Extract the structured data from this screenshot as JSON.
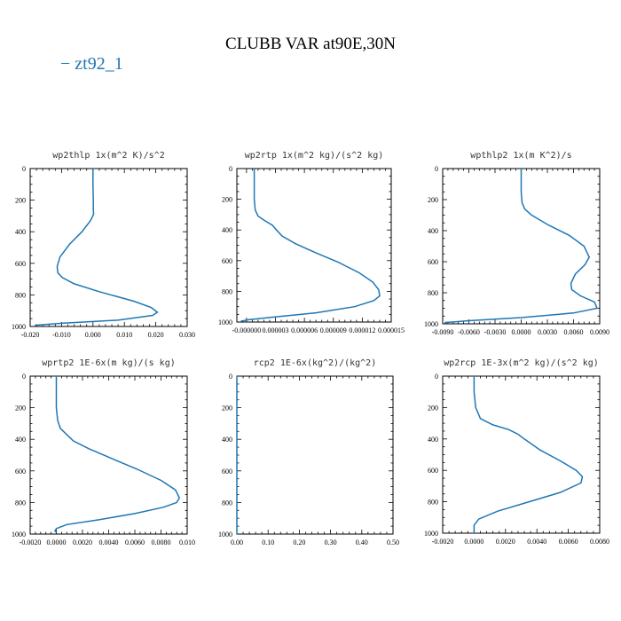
{
  "title": "CLUBB VAR at90E,30N",
  "legend": {
    "label": "− zt92_1",
    "color": "#1f77b4"
  },
  "chart_data": [
    {
      "type": "line",
      "title": "wp2thlp  1x(m^2 K)/s^2",
      "xlim": [
        -0.02,
        0.03
      ],
      "ylim": [
        1000,
        0
      ],
      "xticks": [
        "-0.020",
        "-0.010",
        "0.000",
        "0.010",
        "0.020",
        "0.030"
      ],
      "xtick_values": [
        -0.02,
        -0.01,
        0.0,
        0.01,
        0.02,
        0.03
      ],
      "yticks": [
        "0",
        "200",
        "400",
        "600",
        "800",
        "1000"
      ],
      "ytick_values": [
        0,
        200,
        400,
        600,
        800,
        1000
      ],
      "series": [
        {
          "x": [
            0.0,
            0.0,
            0.0001,
            0.0001,
            0.0002,
            -0.0008,
            -0.0035,
            -0.0075,
            -0.0105,
            -0.0114,
            -0.0112,
            -0.0098,
            -0.006,
            0.002,
            0.013,
            0.0185,
            0.0205,
            0.019,
            0.008,
            -0.01,
            -0.0185
          ],
          "y": [
            0,
            100,
            200,
            260,
            290,
            330,
            400,
            480,
            560,
            620,
            660,
            690,
            730,
            780,
            840,
            880,
            910,
            930,
            960,
            980,
            992
          ]
        }
      ]
    },
    {
      "type": "line",
      "title": "wp2rtp  1x(m^2 kg)/(s^2 kg)",
      "xlim": [
        -1e-06,
        1.5e-05
      ],
      "ylim": [
        1000,
        0
      ],
      "xticks": [
        "-0.000000",
        "0.000003",
        "0.000006",
        "0.000009",
        "0.000012",
        "0.000015"
      ],
      "xtick_values": [
        0.0,
        3e-06,
        6e-06,
        9e-06,
        1.2e-05,
        1.5e-05
      ],
      "yticks": [
        "0",
        "200",
        "400",
        "600",
        "800",
        "1000"
      ],
      "ytick_values": [
        0,
        200,
        400,
        600,
        800,
        1000
      ],
      "series": [
        {
          "x": [
            8e-07,
            8e-07,
            8e-07,
            9e-07,
            1.2e-06,
            1.9e-06,
            2.7e-06,
            3.1e-06,
            3.7e-06,
            5.1e-06,
            7.2e-06,
            9.5e-06,
            1.17e-05,
            1.31e-05,
            1.37e-05,
            1.38e-05,
            1.32e-05,
            1.12e-05,
            7.2e-06,
            2.5e-06,
            2e-07,
            -6e-07
          ],
          "y": [
            0,
            100,
            200,
            270,
            310,
            340,
            370,
            400,
            440,
            490,
            550,
            610,
            680,
            740,
            790,
            830,
            860,
            900,
            940,
            970,
            985,
            995
          ]
        }
      ]
    },
    {
      "type": "line",
      "title": "wpthlp2  1x(m K^2)/s",
      "xlim": [
        -0.009,
        0.009
      ],
      "ylim": [
        1000,
        0
      ],
      "xticks": [
        "-0.0090",
        "-0.0060",
        "-0.0030",
        "0.0000",
        "0.0030",
        "0.0060",
        "0.0090"
      ],
      "xtick_values": [
        -0.009,
        -0.006,
        -0.003,
        0.0,
        0.003,
        0.006,
        0.009
      ],
      "yticks": [
        "0",
        "200",
        "400",
        "600",
        "800",
        "1000"
      ],
      "ytick_values": [
        0,
        200,
        400,
        600,
        800,
        1000
      ],
      "series": [
        {
          "x": [
            0.0,
            0.0,
            0.0001,
            0.0004,
            0.0012,
            0.003,
            0.0055,
            0.0072,
            0.0078,
            0.0073,
            0.0062,
            0.0057,
            0.0058,
            0.0068,
            0.0084,
            0.0087,
            0.006,
            0.0,
            -0.006,
            -0.0088
          ],
          "y": [
            0,
            150,
            220,
            260,
            300,
            360,
            430,
            500,
            570,
            620,
            680,
            740,
            780,
            820,
            860,
            900,
            930,
            960,
            980,
            992
          ]
        }
      ]
    },
    {
      "type": "line",
      "title": "wprtp2  1E-6x(m kg)/(s kg)",
      "xlim": [
        -0.002,
        0.01
      ],
      "ylim": [
        1000,
        0
      ],
      "xticks": [
        "-0.0020",
        "0.0000",
        "0.0020",
        "0.0040",
        "0.0060",
        "0.0080",
        "0.010"
      ],
      "xtick_values": [
        -0.002,
        0.0,
        0.002,
        0.004,
        0.006,
        0.008,
        0.01
      ],
      "yticks": [
        "0",
        "200",
        "400",
        "600",
        "800",
        "1000"
      ],
      "ytick_values": [
        0,
        200,
        400,
        600,
        800,
        1000
      ],
      "series": [
        {
          "x": [
            0.0,
            0.0,
            0.0,
            0.0001,
            0.0003,
            0.0008,
            0.0013,
            0.0025,
            0.0042,
            0.0062,
            0.008,
            0.0091,
            0.0094,
            0.0092,
            0.0082,
            0.006,
            0.0032,
            0.0008,
            0.0,
            -0.0001,
            0.0
          ],
          "y": [
            0,
            100,
            200,
            280,
            330,
            370,
            410,
            460,
            520,
            590,
            660,
            720,
            770,
            800,
            830,
            870,
            910,
            940,
            965,
            980,
            990
          ]
        }
      ]
    },
    {
      "type": "line",
      "title": "rcp2  1E-6x(kg^2)/(kg^2)",
      "xlim": [
        0.0,
        0.5
      ],
      "ylim": [
        1000,
        0
      ],
      "xticks": [
        "0.00",
        "0.10",
        "0.20",
        "0.30",
        "0.40",
        "0.50"
      ],
      "xtick_values": [
        0.0,
        0.1,
        0.2,
        0.3,
        0.4,
        0.5
      ],
      "yticks": [
        "0",
        "200",
        "400",
        "600",
        "800",
        "1000"
      ],
      "ytick_values": [
        0,
        200,
        400,
        600,
        800,
        1000
      ],
      "series": [
        {
          "x": [
            0.0,
            0.0,
            0.0,
            0.0,
            0.0,
            0.0
          ],
          "y": [
            0,
            200,
            400,
            600,
            800,
            1000
          ]
        }
      ]
    },
    {
      "type": "line",
      "title": "wp2rcp  1E-3x(m^2 kg)/(s^2 kg)",
      "xlim": [
        -0.002,
        0.008
      ],
      "ylim": [
        1000,
        0
      ],
      "xticks": [
        "-0.0020",
        "0.0000",
        "0.0020",
        "0.0040",
        "0.0060",
        "0.0080"
      ],
      "xtick_values": [
        -0.002,
        0.0,
        0.002,
        0.004,
        0.006,
        0.008
      ],
      "yticks": [
        "0",
        "200",
        "400",
        "600",
        "800",
        "1000"
      ],
      "ytick_values": [
        0,
        200,
        400,
        600,
        800,
        1000
      ],
      "series": [
        {
          "x": [
            0.0,
            0.0,
            0.0001,
            0.0004,
            0.0012,
            0.0022,
            0.0028,
            0.0032,
            0.0042,
            0.0055,
            0.0065,
            0.0069,
            0.0068,
            0.0055,
            0.0035,
            0.0015,
            0.0003,
            0.0,
            0.0
          ],
          "y": [
            0,
            100,
            200,
            270,
            310,
            340,
            370,
            400,
            470,
            540,
            600,
            640,
            680,
            740,
            800,
            860,
            910,
            950,
            1000
          ]
        }
      ]
    }
  ]
}
